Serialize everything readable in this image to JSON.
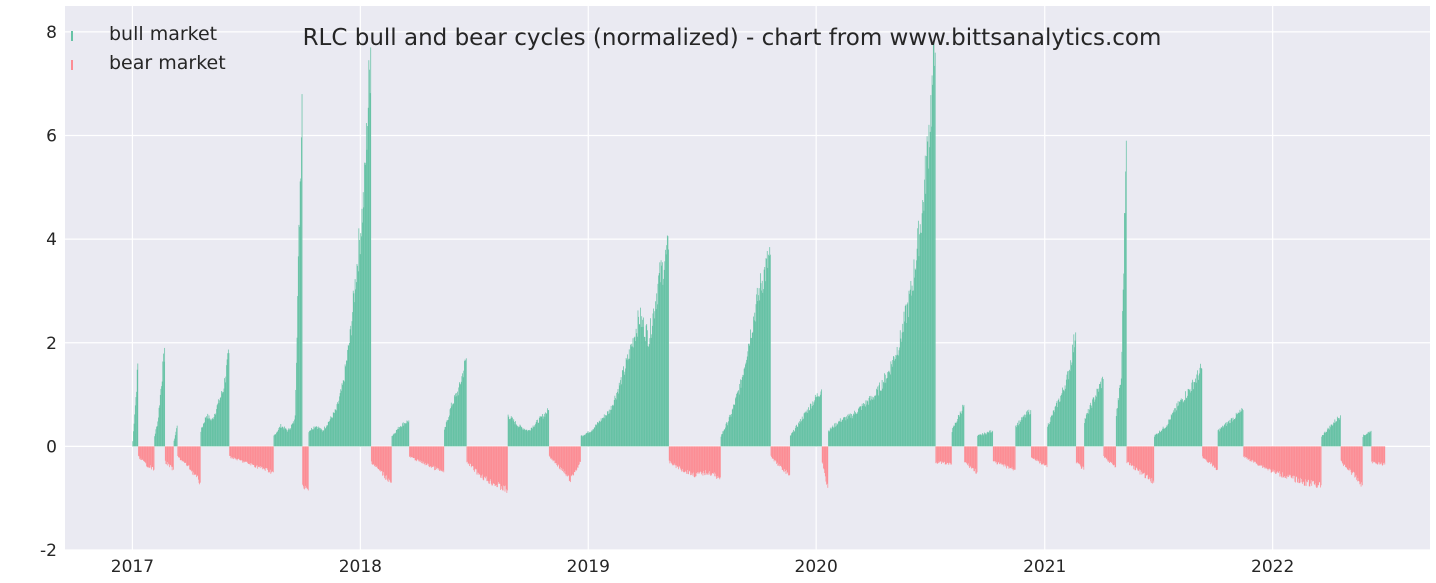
{
  "chart_data": {
    "type": "bar",
    "title": "RLC bull and bear cycles (normalized)  - chart from www.bittsanalytics.com",
    "xlabel": "",
    "ylabel": "",
    "x_range": [
      "2016-09-15",
      "2022-09-10"
    ],
    "ylim": [
      -2,
      8.5
    ],
    "y_ticks": [
      -2,
      0,
      2,
      4,
      6,
      8
    ],
    "x_ticks": [
      "2017",
      "2018",
      "2019",
      "2020",
      "2021",
      "2022"
    ],
    "grid": true,
    "legend": "top-left",
    "colors": {
      "bull": "#66c2a5",
      "bear": "#fc8d94",
      "background": "#eaeaf2",
      "grid": "#ffffff"
    },
    "series": [
      {
        "name": "bull market",
        "segments": [
          {
            "start": "2017-01-01",
            "end": "2017-01-10",
            "values": [
              0.1,
              0.6,
              1.0,
              1.6
            ]
          },
          {
            "start": "2017-02-05",
            "end": "2017-02-22",
            "values": [
              0.2,
              0.5,
              1.2,
              1.9
            ]
          },
          {
            "start": "2017-03-08",
            "end": "2017-03-14",
            "values": [
              0.1,
              0.4
            ]
          },
          {
            "start": "2017-04-20",
            "end": "2017-06-05",
            "values": [
              0.3,
              0.6,
              0.5,
              0.8,
              1.1,
              1.8
            ]
          },
          {
            "start": "2017-08-15",
            "end": "2017-09-30",
            "values": [
              0.2,
              0.4,
              0.3,
              0.5,
              6.8
            ]
          },
          {
            "start": "2017-10-10",
            "end": "2018-01-18",
            "values": [
              0.3,
              0.4,
              0.3,
              0.5,
              0.7,
              1.2,
              2.1,
              3.5,
              4.8,
              7.7
            ]
          },
          {
            "start": "2018-02-20",
            "end": "2018-03-20",
            "values": [
              0.2,
              0.4,
              0.5
            ]
          },
          {
            "start": "2018-05-15",
            "end": "2018-06-20",
            "values": [
              0.3,
              0.8,
              1.1,
              1.7
            ]
          },
          {
            "start": "2018-08-25",
            "end": "2018-10-30",
            "values": [
              0.6,
              0.4,
              0.3,
              0.5,
              0.7
            ]
          },
          {
            "start": "2018-12-20",
            "end": "2019-05-10",
            "values": [
              0.2,
              0.3,
              0.5,
              0.7,
              1.2,
              1.8,
              2.5,
              2.1,
              3.2,
              3.8
            ]
          },
          {
            "start": "2019-08-01",
            "end": "2019-10-20",
            "values": [
              0.2,
              0.6,
              1.2,
              2.2,
              3.1,
              3.7
            ]
          },
          {
            "start": "2019-11-20",
            "end": "2020-01-10",
            "values": [
              0.2,
              0.5,
              0.8,
              1.1
            ]
          },
          {
            "start": "2020-01-20",
            "end": "2020-07-10",
            "values": [
              0.3,
              0.5,
              0.6,
              0.8,
              1.0,
              1.4,
              2.0,
              3.0,
              4.7,
              7.6
            ]
          },
          {
            "start": "2020-08-05",
            "end": "2020-08-25",
            "values": [
              0.3,
              0.8
            ]
          },
          {
            "start": "2020-09-15",
            "end": "2020-10-10",
            "values": [
              0.2,
              0.3
            ]
          },
          {
            "start": "2020-11-15",
            "end": "2020-12-10",
            "values": [
              0.4,
              0.7
            ]
          },
          {
            "start": "2021-01-05",
            "end": "2021-02-20",
            "values": [
              0.4,
              0.7,
              1.0,
              1.4,
              2.2
            ]
          },
          {
            "start": "2021-03-05",
            "end": "2021-04-05",
            "values": [
              0.5,
              0.9,
              1.3
            ]
          },
          {
            "start": "2021-04-25",
            "end": "2021-05-12",
            "values": [
              0.6,
              1.3,
              5.9
            ]
          },
          {
            "start": "2021-06-25",
            "end": "2021-09-10",
            "values": [
              0.2,
              0.4,
              0.8,
              1.1,
              1.5
            ]
          },
          {
            "start": "2021-10-05",
            "end": "2021-11-15",
            "values": [
              0.3,
              0.5,
              0.7
            ]
          },
          {
            "start": "2022-03-20",
            "end": "2022-04-20",
            "values": [
              0.2,
              0.4,
              0.6
            ]
          },
          {
            "start": "2022-05-25",
            "end": "2022-06-08",
            "values": [
              0.2,
              0.3
            ]
          }
        ]
      },
      {
        "name": "bear market",
        "segments": [
          {
            "start": "2017-01-10",
            "end": "2017-02-05",
            "values": [
              -0.2,
              -0.35,
              -0.45
            ]
          },
          {
            "start": "2017-02-22",
            "end": "2017-03-08",
            "values": [
              -0.3,
              -0.45
            ]
          },
          {
            "start": "2017-03-14",
            "end": "2017-04-20",
            "values": [
              -0.2,
              -0.4,
              -0.7
            ]
          },
          {
            "start": "2017-06-05",
            "end": "2017-08-15",
            "values": [
              -0.2,
              -0.3,
              -0.4,
              -0.5
            ]
          },
          {
            "start": "2017-09-30",
            "end": "2017-10-10",
            "values": [
              -0.8,
              -0.85
            ]
          },
          {
            "start": "2018-01-18",
            "end": "2018-02-20",
            "values": [
              -0.3,
              -0.5,
              -0.7
            ]
          },
          {
            "start": "2018-03-20",
            "end": "2018-05-15",
            "values": [
              -0.2,
              -0.35,
              -0.5
            ]
          },
          {
            "start": "2018-06-20",
            "end": "2018-08-25",
            "values": [
              -0.3,
              -0.5,
              -0.65,
              -0.75,
              -0.85
            ]
          },
          {
            "start": "2018-10-30",
            "end": "2018-12-20",
            "values": [
              -0.2,
              -0.4,
              -0.65,
              -0.3
            ]
          },
          {
            "start": "2019-05-10",
            "end": "2019-08-01",
            "values": [
              -0.3,
              -0.45,
              -0.55,
              -0.5,
              -0.6
            ]
          },
          {
            "start": "2019-10-20",
            "end": "2019-11-20",
            "values": [
              -0.2,
              -0.4,
              -0.55
            ]
          },
          {
            "start": "2020-01-10",
            "end": "2020-01-20",
            "values": [
              -0.3,
              -0.8
            ]
          },
          {
            "start": "2020-07-10",
            "end": "2020-08-05",
            "values": [
              -0.3,
              -0.35
            ]
          },
          {
            "start": "2020-08-25",
            "end": "2020-09-15",
            "values": [
              -0.3,
              -0.5
            ]
          },
          {
            "start": "2020-10-10",
            "end": "2020-11-15",
            "values": [
              -0.3,
              -0.45
            ]
          },
          {
            "start": "2020-12-10",
            "end": "2021-01-05",
            "values": [
              -0.2,
              -0.4
            ]
          },
          {
            "start": "2021-02-20",
            "end": "2021-03-05",
            "values": [
              -0.3,
              -0.45
            ]
          },
          {
            "start": "2021-04-05",
            "end": "2021-04-25",
            "values": [
              -0.2,
              -0.4
            ]
          },
          {
            "start": "2021-05-12",
            "end": "2021-06-25",
            "values": [
              -0.3,
              -0.5,
              -0.7
            ]
          },
          {
            "start": "2021-09-10",
            "end": "2021-10-05",
            "values": [
              -0.2,
              -0.45
            ]
          },
          {
            "start": "2021-11-15",
            "end": "2022-03-20",
            "values": [
              -0.2,
              -0.35,
              -0.5,
              -0.6,
              -0.7,
              -0.75
            ]
          },
          {
            "start": "2022-04-20",
            "end": "2022-05-25",
            "values": [
              -0.3,
              -0.5,
              -0.75
            ]
          },
          {
            "start": "2022-06-08",
            "end": "2022-06-30",
            "values": [
              -0.3,
              -0.35
            ]
          }
        ]
      }
    ]
  }
}
